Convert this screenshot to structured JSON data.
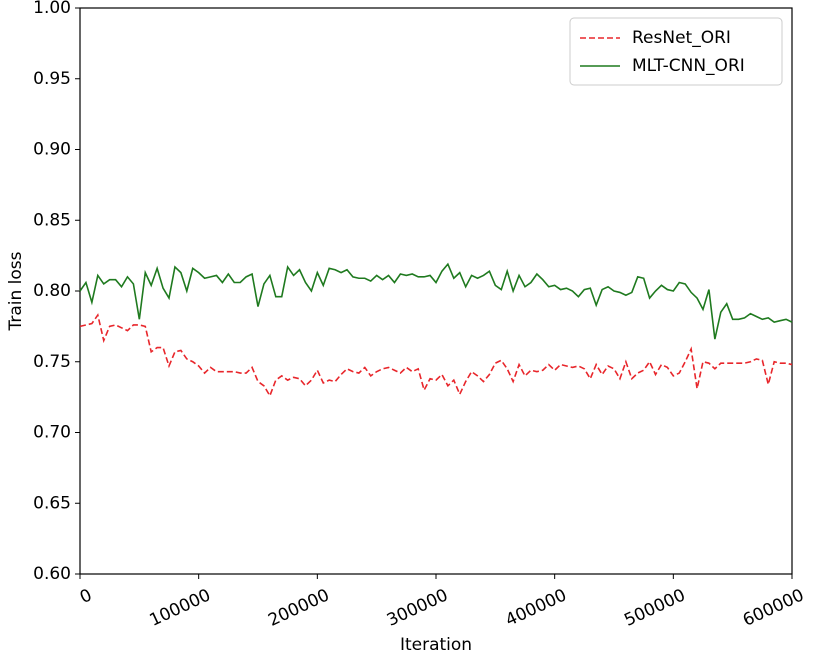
{
  "chart_data": {
    "type": "line",
    "xlabel": "Iteration",
    "ylabel": "Train loss",
    "x": [
      0,
      5000,
      10000,
      15000,
      20000,
      25000,
      30000,
      35000,
      40000,
      45000,
      50000,
      55000,
      60000,
      65000,
      70000,
      75000,
      80000,
      85000,
      90000,
      95000,
      100000,
      105000,
      110000,
      115000,
      120000,
      125000,
      130000,
      135000,
      140000,
      145000,
      150000,
      155000,
      160000,
      165000,
      170000,
      175000,
      180000,
      185000,
      190000,
      195000,
      200000,
      205000,
      210000,
      215000,
      220000,
      225000,
      230000,
      235000,
      240000,
      245000,
      250000,
      255000,
      260000,
      265000,
      270000,
      275000,
      280000,
      285000,
      290000,
      295000,
      300000,
      305000,
      310000,
      315000,
      320000,
      325000,
      330000,
      335000,
      340000,
      345000,
      350000,
      355000,
      360000,
      365000,
      370000,
      375000,
      380000,
      385000,
      390000,
      395000,
      400000,
      405000,
      410000,
      415000,
      420000,
      425000,
      430000,
      435000,
      440000,
      445000,
      450000,
      455000,
      460000,
      465000,
      470000,
      475000,
      480000,
      485000,
      490000,
      495000,
      500000,
      505000,
      510000,
      515000,
      520000,
      525000,
      530000,
      535000,
      540000,
      545000,
      550000,
      555000,
      560000,
      565000,
      570000,
      575000,
      580000,
      585000,
      590000,
      595000,
      600000
    ],
    "series": [
      {
        "name": "ResNet_ORI",
        "color": "#e8262b",
        "linestyle": "dashed",
        "values": [
          0.775,
          0.776,
          0.777,
          0.783,
          0.765,
          0.775,
          0.776,
          0.774,
          0.772,
          0.776,
          0.776,
          0.775,
          0.757,
          0.76,
          0.76,
          0.747,
          0.757,
          0.758,
          0.752,
          0.75,
          0.747,
          0.742,
          0.746,
          0.743,
          0.743,
          0.743,
          0.743,
          0.742,
          0.742,
          0.746,
          0.736,
          0.733,
          0.726,
          0.737,
          0.74,
          0.737,
          0.739,
          0.738,
          0.733,
          0.737,
          0.744,
          0.735,
          0.737,
          0.736,
          0.741,
          0.745,
          0.743,
          0.742,
          0.746,
          0.74,
          0.743,
          0.745,
          0.746,
          0.744,
          0.742,
          0.746,
          0.743,
          0.745,
          0.73,
          0.738,
          0.737,
          0.741,
          0.733,
          0.737,
          0.727,
          0.736,
          0.743,
          0.74,
          0.736,
          0.741,
          0.749,
          0.751,
          0.745,
          0.736,
          0.748,
          0.74,
          0.744,
          0.743,
          0.744,
          0.748,
          0.744,
          0.748,
          0.747,
          0.746,
          0.747,
          0.745,
          0.738,
          0.748,
          0.741,
          0.747,
          0.745,
          0.738,
          0.75,
          0.738,
          0.742,
          0.744,
          0.75,
          0.741,
          0.748,
          0.746,
          0.74,
          0.742,
          0.75,
          0.759,
          0.731,
          0.75,
          0.749,
          0.745,
          0.749,
          0.749,
          0.749,
          0.749,
          0.749,
          0.75,
          0.752,
          0.751,
          0.734,
          0.75,
          0.749,
          0.749,
          0.748
        ]
      },
      {
        "name": "MLT-CNN_ORI",
        "color": "#1f7a1f",
        "linestyle": "solid",
        "values": [
          0.8,
          0.806,
          0.792,
          0.811,
          0.805,
          0.808,
          0.808,
          0.803,
          0.81,
          0.805,
          0.78,
          0.813,
          0.804,
          0.816,
          0.802,
          0.795,
          0.817,
          0.813,
          0.8,
          0.816,
          0.813,
          0.809,
          0.81,
          0.811,
          0.806,
          0.812,
          0.806,
          0.806,
          0.81,
          0.812,
          0.789,
          0.805,
          0.811,
          0.796,
          0.796,
          0.817,
          0.811,
          0.815,
          0.806,
          0.8,
          0.813,
          0.804,
          0.816,
          0.815,
          0.813,
          0.815,
          0.81,
          0.809,
          0.809,
          0.807,
          0.811,
          0.808,
          0.811,
          0.806,
          0.812,
          0.811,
          0.812,
          0.81,
          0.81,
          0.811,
          0.806,
          0.814,
          0.819,
          0.809,
          0.813,
          0.803,
          0.811,
          0.809,
          0.811,
          0.814,
          0.804,
          0.801,
          0.814,
          0.8,
          0.811,
          0.803,
          0.806,
          0.812,
          0.808,
          0.803,
          0.804,
          0.801,
          0.802,
          0.8,
          0.796,
          0.801,
          0.802,
          0.79,
          0.801,
          0.803,
          0.8,
          0.799,
          0.797,
          0.799,
          0.81,
          0.809,
          0.795,
          0.8,
          0.804,
          0.801,
          0.8,
          0.806,
          0.805,
          0.799,
          0.795,
          0.787,
          0.801,
          0.766,
          0.785,
          0.791,
          0.78,
          0.78,
          0.781,
          0.784,
          0.782,
          0.78,
          0.781,
          0.778,
          0.779,
          0.78,
          0.778
        ]
      }
    ],
    "xlim": [
      0,
      600000
    ],
    "xticks": [
      0,
      100000,
      200000,
      300000,
      400000,
      500000,
      600000
    ],
    "ylim": [
      0.6,
      1.0
    ],
    "yticks": [
      {
        "value": 0.6,
        "label": "0.60"
      },
      0.65,
      {
        "value": 0.7,
        "label": "0.70"
      },
      0.75,
      {
        "value": 0.8,
        "label": "0.80"
      },
      0.85,
      {
        "value": 0.9,
        "label": "0.90"
      },
      0.95,
      {
        "value": 1.0,
        "label": "1.00"
      }
    ],
    "legend": "upper right",
    "grid": false
  }
}
